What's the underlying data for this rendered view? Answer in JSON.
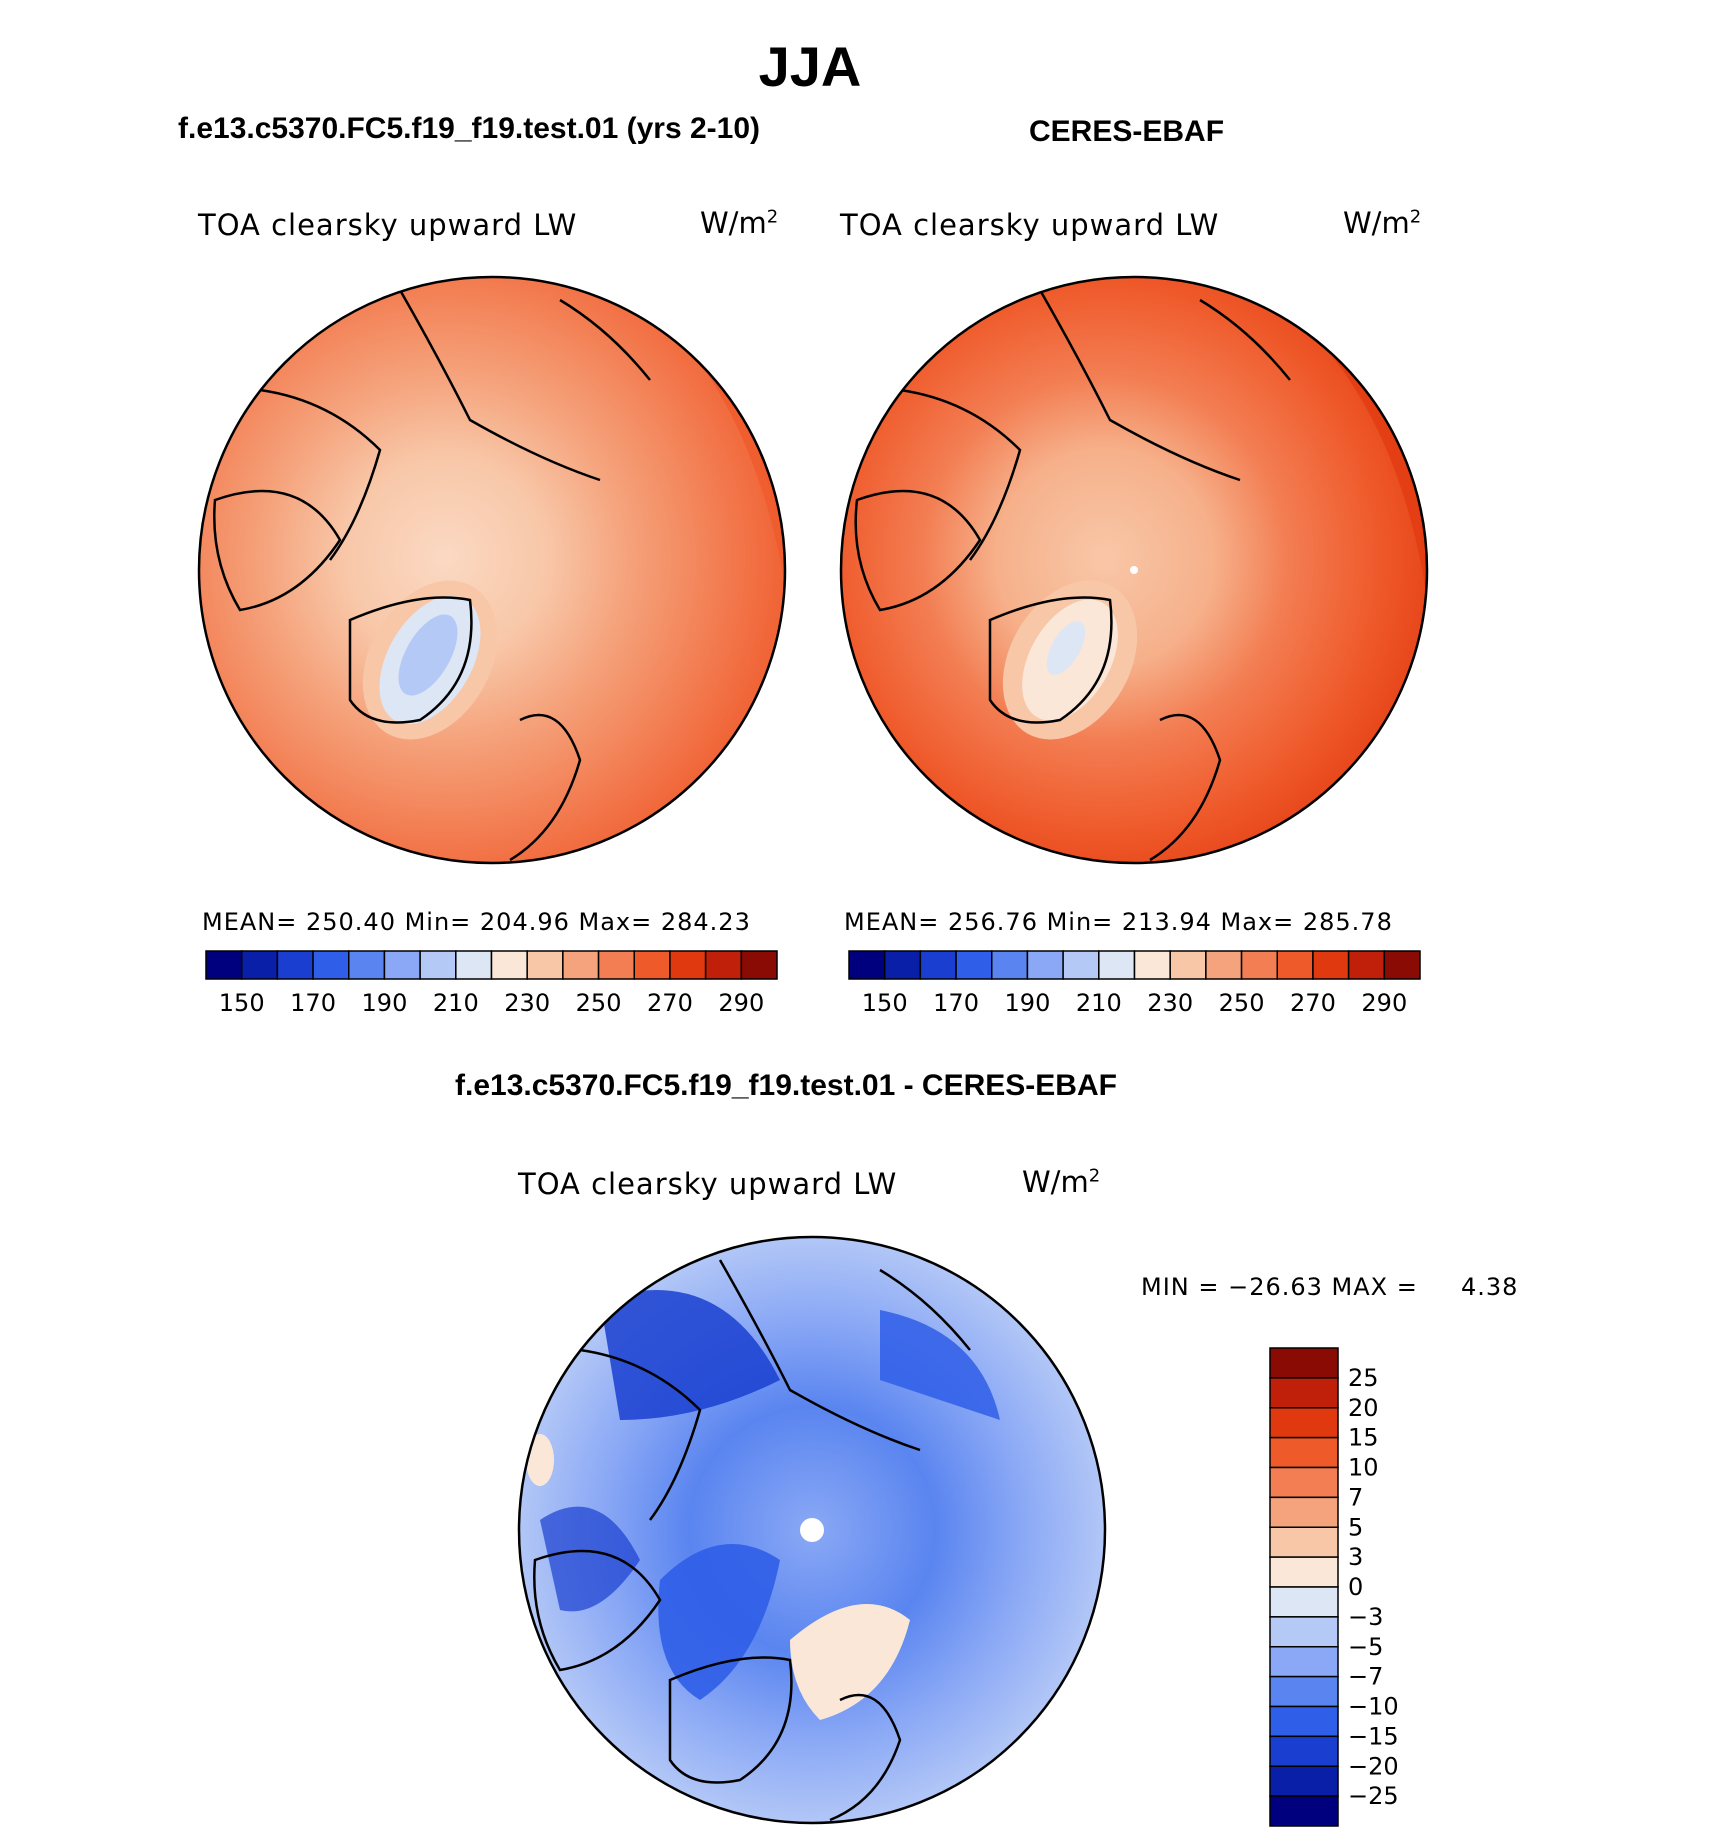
{
  "season_title": "JJA",
  "panels": {
    "model": {
      "title": "f.e13.c5370.FC5.f19_f19.test.01 (yrs 2-10)",
      "field": "TOA clearsky upward LW",
      "units_base": "W/m",
      "units_sup": "2",
      "stats_text": "MEAN= 250.40   Min= 204.96   Max= 284.23"
    },
    "obs": {
      "title": "CERES-EBAF",
      "field": "TOA clearsky upward LW",
      "units_base": "W/m",
      "units_sup": "2",
      "stats_text": "MEAN= 256.76   Min= 213.94   Max= 285.78"
    },
    "diff": {
      "title": "f.e13.c5370.FC5.f19_f19.test.01 - CERES-EBAF",
      "field": "TOA clearsky upward LW",
      "units_base": "W/m",
      "units_sup": "2",
      "stats_text": "MIN = −26.63 MAX =     4.38"
    }
  },
  "chart_data": [
    {
      "type": "heatmap",
      "projection": "north-polar-stereographic",
      "title": "f.e13.c5370.FC5.f19_f19.test.01 (yrs 2-10)",
      "field": "TOA clearsky upward LW",
      "units": "W/m2",
      "mean": 250.4,
      "min": 204.96,
      "max": 284.23,
      "colorbar": {
        "orientation": "horizontal",
        "tick_labels": [
          "150",
          "170",
          "190",
          "210",
          "230",
          "250",
          "270",
          "290"
        ],
        "colors": [
          "#00007f",
          "#0a1fa8",
          "#1a3fd0",
          "#2f5ee8",
          "#5a85f0",
          "#8aa8f5",
          "#b5c9f7",
          "#dde6f5",
          "#fbe7d8",
          "#f8c7a8",
          "#f5a37c",
          "#f37e53",
          "#ef5a2b",
          "#e1390f",
          "#c01f0a",
          "#8a0a04"
        ]
      }
    },
    {
      "type": "heatmap",
      "projection": "north-polar-stereographic",
      "title": "CERES-EBAF",
      "field": "TOA clearsky upward LW",
      "units": "W/m2",
      "mean": 256.76,
      "min": 213.94,
      "max": 285.78,
      "colorbar": {
        "orientation": "horizontal",
        "tick_labels": [
          "150",
          "170",
          "190",
          "210",
          "230",
          "250",
          "270",
          "290"
        ],
        "colors": [
          "#00007f",
          "#0a1fa8",
          "#1a3fd0",
          "#2f5ee8",
          "#5a85f0",
          "#8aa8f5",
          "#b5c9f7",
          "#dde6f5",
          "#fbe7d8",
          "#f8c7a8",
          "#f5a37c",
          "#f37e53",
          "#ef5a2b",
          "#e1390f",
          "#c01f0a",
          "#8a0a04"
        ]
      }
    },
    {
      "type": "heatmap",
      "projection": "north-polar-stereographic",
      "title": "f.e13.c5370.FC5.f19_f19.test.01 - CERES-EBAF",
      "field": "TOA clearsky upward LW",
      "units": "W/m2",
      "min": -26.63,
      "max": 4.38,
      "colorbar": {
        "orientation": "vertical",
        "tick_labels": [
          "25",
          "20",
          "15",
          "10",
          "7",
          "5",
          "3",
          "0",
          "−3",
          "−5",
          "−7",
          "−10",
          "−15",
          "−20",
          "−25"
        ],
        "colors": [
          "#8a0a04",
          "#c01f0a",
          "#e1390f",
          "#ef5a2b",
          "#f37e53",
          "#f5a37c",
          "#f8c7a8",
          "#fbe7d8",
          "#dde6f5",
          "#b5c9f7",
          "#8aa8f5",
          "#5a85f0",
          "#2f5ee8",
          "#1a3fd0",
          "#0a1fa8",
          "#00007f"
        ]
      }
    }
  ]
}
